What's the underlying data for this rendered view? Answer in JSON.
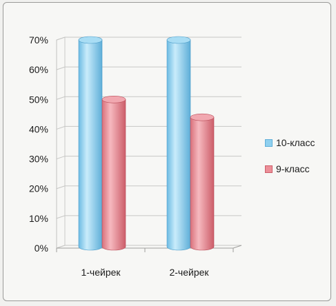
{
  "chart_data": {
    "type": "bar",
    "categories": [
      "1-чейрек",
      "2-чейрек"
    ],
    "series": [
      {
        "name": "10-класс",
        "values": [
          70,
          70
        ],
        "color": "#8fd0ef"
      },
      {
        "name": "9-класс",
        "values": [
          50,
          44
        ],
        "color": "#ec8f98"
      }
    ],
    "ylim": [
      0,
      70
    ],
    "y_ticks": [
      "0%",
      "10%",
      "20%",
      "30%",
      "40%",
      "50%",
      "60%",
      "70%"
    ],
    "grid": true,
    "legend_position": "right",
    "style": "3d-cylinder"
  }
}
